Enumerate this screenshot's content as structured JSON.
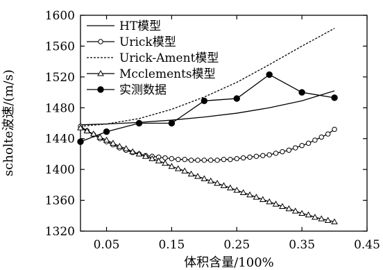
{
  "chart_data": {
    "type": "line",
    "xlabel": "体积含量/100%",
    "ylabel": "scholte波速/(m/s)",
    "xlim": [
      0.01,
      0.45
    ],
    "ylim": [
      1320,
      1600
    ],
    "x_ticks": [
      "0.05",
      "0.15",
      "0.25",
      "0.35",
      "0.45"
    ],
    "y_ticks": [
      "1320",
      "1360",
      "1400",
      "1440",
      "1480",
      "1520",
      "1560",
      "1600"
    ],
    "grid": false,
    "legend_position": "top-left",
    "series": [
      {
        "name": "HT模型",
        "style": "solid",
        "marker": "none",
        "x": [
          0.01,
          0.05,
          0.1,
          0.15,
          0.2,
          0.25,
          0.3,
          0.35,
          0.4
        ],
        "y": [
          1458,
          1459,
          1461,
          1464,
          1468,
          1473,
          1480,
          1489,
          1502
        ]
      },
      {
        "name": "Urick模型",
        "style": "solid",
        "marker": "open-circle",
        "x": [
          0.01,
          0.02,
          0.03,
          0.04,
          0.05,
          0.06,
          0.07,
          0.08,
          0.09,
          0.1,
          0.11,
          0.12,
          0.13,
          0.14,
          0.15,
          0.16,
          0.17,
          0.18,
          0.19,
          0.2,
          0.21,
          0.22,
          0.23,
          0.24,
          0.25,
          0.26,
          0.27,
          0.28,
          0.29,
          0.3,
          0.31,
          0.32,
          0.33,
          0.34,
          0.35,
          0.36,
          0.37,
          0.38,
          0.39,
          0.4
        ],
        "y": [
          1456,
          1450,
          1445,
          1440,
          1436,
          1432,
          1428,
          1425,
          1422,
          1420,
          1418,
          1417,
          1416,
          1415,
          1414,
          1413,
          1413,
          1412,
          1412,
          1412,
          1412,
          1412,
          1413,
          1413,
          1414,
          1415,
          1416,
          1417,
          1418,
          1419,
          1421,
          1423,
          1425,
          1428,
          1431,
          1434,
          1438,
          1442,
          1446,
          1452
        ]
      },
      {
        "name": "Urick-Ament模型",
        "style": "dashed",
        "marker": "none",
        "x": [
          0.01,
          0.05,
          0.1,
          0.15,
          0.2,
          0.25,
          0.3,
          0.35,
          0.4
        ],
        "y": [
          1456,
          1459,
          1466,
          1478,
          1494,
          1513,
          1536,
          1560,
          1583
        ]
      },
      {
        "name": "Mcclements模型",
        "style": "solid",
        "marker": "open-triangle",
        "x": [
          0.01,
          0.02,
          0.03,
          0.04,
          0.05,
          0.06,
          0.07,
          0.08,
          0.09,
          0.1,
          0.11,
          0.12,
          0.13,
          0.14,
          0.15,
          0.16,
          0.17,
          0.18,
          0.19,
          0.2,
          0.21,
          0.22,
          0.23,
          0.24,
          0.25,
          0.26,
          0.27,
          0.28,
          0.29,
          0.3,
          0.31,
          0.32,
          0.33,
          0.34,
          0.35,
          0.36,
          0.37,
          0.38,
          0.39,
          0.4
        ],
        "y": [
          1454,
          1450,
          1446,
          1442,
          1438,
          1434,
          1430,
          1427,
          1423,
          1420,
          1417,
          1414,
          1411,
          1408,
          1404,
          1401,
          1398,
          1394,
          1391,
          1388,
          1385,
          1382,
          1379,
          1376,
          1373,
          1370,
          1367,
          1364,
          1361,
          1358,
          1355,
          1352,
          1349,
          1346,
          1343,
          1341,
          1338,
          1336,
          1334,
          1332
        ]
      },
      {
        "name": "实测数据",
        "style": "solid",
        "marker": "filled-circle",
        "x": [
          0.01,
          0.05,
          0.1,
          0.15,
          0.2,
          0.25,
          0.3,
          0.35,
          0.4
        ],
        "y": [
          1436,
          1449,
          1460,
          1460,
          1489,
          1492,
          1523,
          1500,
          1493
        ]
      }
    ]
  }
}
